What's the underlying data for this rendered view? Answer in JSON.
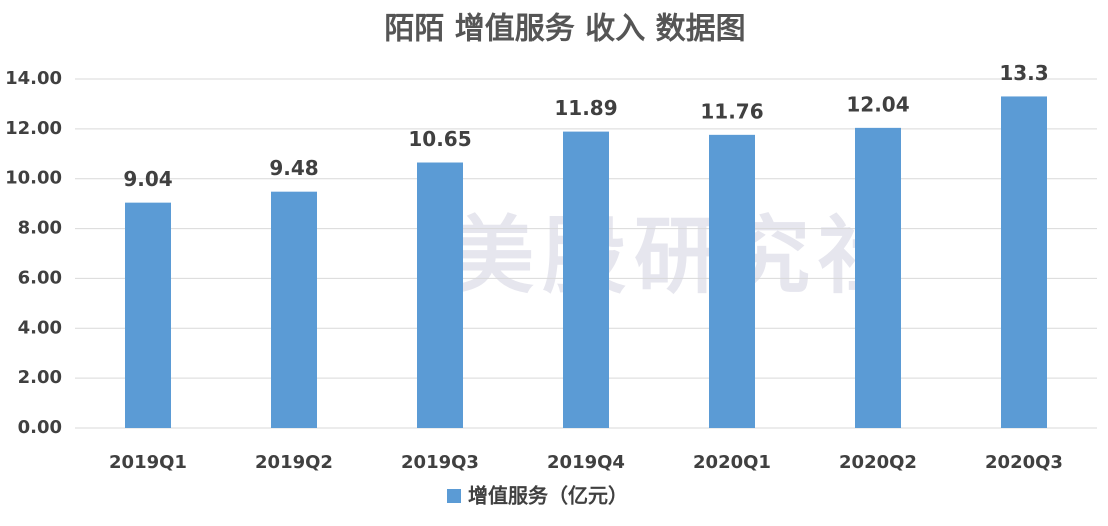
{
  "chart_data": {
    "type": "bar",
    "title": "陌陌 增值服务 收入 数据图",
    "watermark": "美股研究社",
    "categories": [
      "2019Q1",
      "2019Q2",
      "2019Q3",
      "2019Q4",
      "2020Q1",
      "2020Q2",
      "2020Q3"
    ],
    "series": [
      {
        "name": "增值服务（亿元）",
        "color": "#5b9bd5",
        "values": [
          9.04,
          9.48,
          10.65,
          11.89,
          11.76,
          12.04,
          13.3
        ]
      }
    ],
    "ylim": [
      0,
      14
    ],
    "yticks": [
      {
        "value": 0,
        "label": "0.00"
      },
      {
        "value": 2,
        "label": "2.00"
      },
      {
        "value": 4,
        "label": "4.00"
      },
      {
        "value": 6,
        "label": "6.00"
      },
      {
        "value": 8,
        "label": "8.00"
      },
      {
        "value": 10,
        "label": "10.00"
      },
      {
        "value": 12,
        "label": "12.00"
      },
      {
        "value": 14,
        "label": "14.00"
      }
    ],
    "grid": true,
    "legend": "bottom"
  }
}
